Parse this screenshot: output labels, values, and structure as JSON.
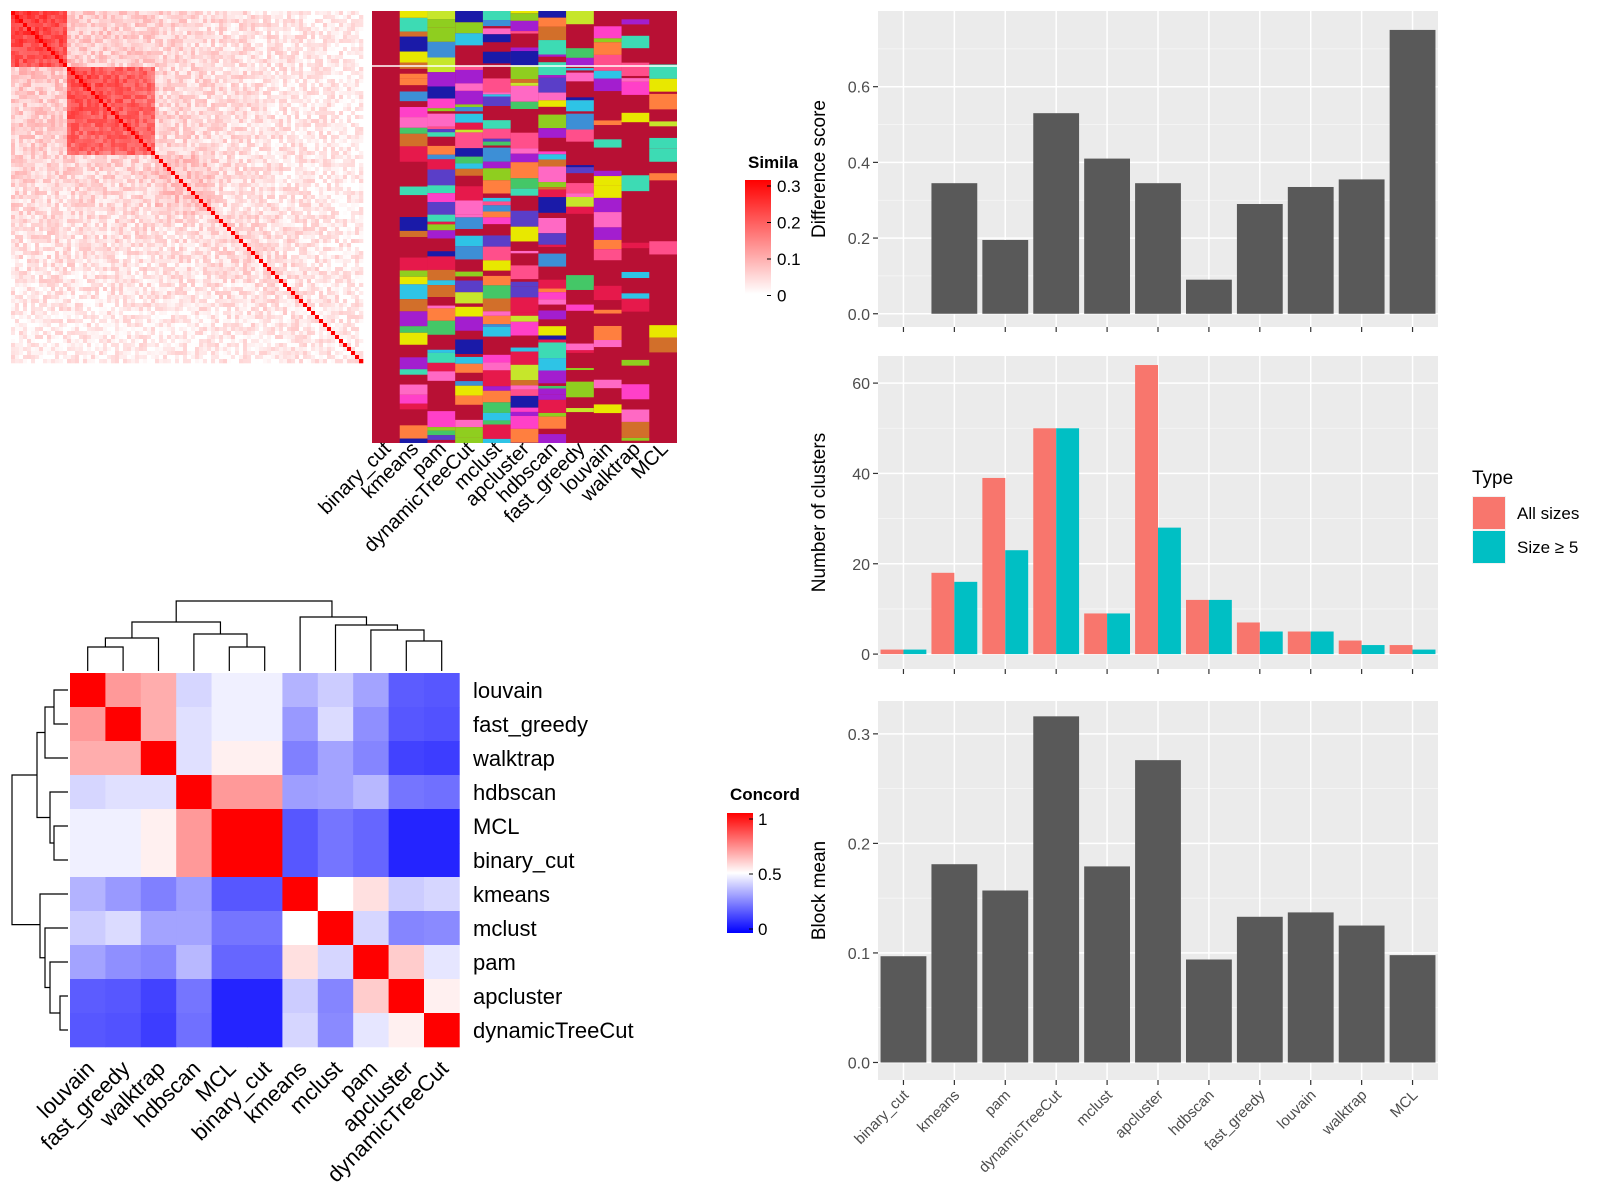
{
  "chart_data": [
    {
      "type": "heatmap",
      "title": "",
      "legend_title": "Simila",
      "legend_ticks": [
        "0.3",
        "0.2",
        "0.1",
        "0"
      ],
      "colors": {
        "low": "#ffffff",
        "high": "#ff0000"
      },
      "annotation_columns": [
        "binary_cut",
        "kmeans",
        "pam",
        "dynamicTreeCut",
        "mclust",
        "apcluster",
        "hdbscan",
        "fast_greedy",
        "louvain",
        "walktrap",
        "MCL"
      ],
      "annotation_base_color": "#b81034"
    },
    {
      "type": "heatmap",
      "title": "",
      "legend_title": "Concord",
      "legend_ticks": [
        "1",
        "0.5",
        "0"
      ],
      "colors": {
        "low": "#0000ff",
        "mid": "#ffffff",
        "high": "#ff0000"
      },
      "rows": [
        "louvain",
        "fast_greedy",
        "walktrap",
        "hdbscan",
        "MCL",
        "binary_cut",
        "kmeans",
        "mclust",
        "pam",
        "apcluster",
        "dynamicTreeCut"
      ],
      "cols": [
        "louvain",
        "fast_greedy",
        "walktrap",
        "hdbscan",
        "MCL",
        "binary_cut",
        "kmeans",
        "mclust",
        "pam",
        "apcluster",
        "dynamicTreeCut"
      ],
      "values": [
        [
          1.0,
          0.7,
          0.66,
          0.42,
          0.47,
          0.47,
          0.35,
          0.4,
          0.32,
          0.18,
          0.17
        ],
        [
          0.7,
          1.0,
          0.66,
          0.44,
          0.47,
          0.47,
          0.3,
          0.43,
          0.28,
          0.17,
          0.16
        ],
        [
          0.66,
          0.66,
          1.0,
          0.44,
          0.53,
          0.53,
          0.25,
          0.32,
          0.26,
          0.13,
          0.12
        ],
        [
          0.42,
          0.44,
          0.44,
          1.0,
          0.7,
          0.7,
          0.31,
          0.32,
          0.36,
          0.23,
          0.22
        ],
        [
          0.47,
          0.47,
          0.53,
          0.7,
          1.0,
          1.0,
          0.17,
          0.23,
          0.2,
          0.07,
          0.07
        ],
        [
          0.47,
          0.47,
          0.53,
          0.7,
          1.0,
          1.0,
          0.17,
          0.23,
          0.2,
          0.07,
          0.07
        ],
        [
          0.35,
          0.3,
          0.25,
          0.31,
          0.17,
          0.17,
          1.0,
          0.5,
          0.56,
          0.4,
          0.42
        ],
        [
          0.4,
          0.43,
          0.32,
          0.32,
          0.23,
          0.23,
          0.5,
          1.0,
          0.42,
          0.26,
          0.27
        ],
        [
          0.32,
          0.28,
          0.26,
          0.36,
          0.2,
          0.2,
          0.56,
          0.42,
          1.0,
          0.6,
          0.45
        ],
        [
          0.18,
          0.17,
          0.13,
          0.23,
          0.07,
          0.07,
          0.4,
          0.26,
          0.6,
          1.0,
          0.53
        ],
        [
          0.17,
          0.16,
          0.12,
          0.22,
          0.07,
          0.07,
          0.42,
          0.27,
          0.45,
          0.53,
          1.0
        ]
      ]
    },
    {
      "type": "bar",
      "ylabel": "Difference score",
      "categories": [
        "binary_cut",
        "kmeans",
        "pam",
        "dynamicTreeCut",
        "mclust",
        "apcluster",
        "hdbscan",
        "fast_greedy",
        "louvain",
        "walktrap",
        "MCL"
      ],
      "values": [
        0.0,
        0.345,
        0.195,
        0.53,
        0.41,
        0.345,
        0.09,
        0.29,
        0.335,
        0.355,
        0.75
      ],
      "yticks": [
        0.0,
        0.2,
        0.4,
        0.6
      ],
      "ytick_labels": [
        "0.0",
        "0.2",
        "0.4",
        "0.6"
      ],
      "ylim": [
        -0.035,
        0.8
      ],
      "color": "#595959"
    },
    {
      "type": "bar",
      "ylabel": "Number of clusters",
      "categories": [
        "binary_cut",
        "kmeans",
        "pam",
        "dynamicTreeCut",
        "mclust",
        "apcluster",
        "hdbscan",
        "fast_greedy",
        "louvain",
        "walktrap",
        "MCL"
      ],
      "series": [
        {
          "name": "All sizes",
          "color": "#f8766d",
          "values": [
            1,
            18,
            39,
            50,
            9,
            64,
            12,
            7,
            5,
            3,
            2
          ]
        },
        {
          "name": "Size ≥ 5",
          "color": "#00bfc4",
          "values": [
            1,
            16,
            23,
            50,
            9,
            28,
            12,
            5,
            5,
            2,
            1
          ]
        }
      ],
      "yticks": [
        0,
        20,
        40,
        60
      ],
      "ytick_labels": [
        "0",
        "20",
        "40",
        "60"
      ],
      "ylim": [
        -3.3,
        66
      ],
      "legend": {
        "title": "Type",
        "position": "right"
      }
    },
    {
      "type": "bar",
      "ylabel": "Block mean",
      "categories": [
        "binary_cut",
        "kmeans",
        "pam",
        "dynamicTreeCut",
        "mclust",
        "apcluster",
        "hdbscan",
        "fast_greedy",
        "louvain",
        "walktrap",
        "MCL"
      ],
      "values": [
        0.097,
        0.181,
        0.157,
        0.316,
        0.179,
        0.276,
        0.094,
        0.133,
        0.137,
        0.125,
        0.098
      ],
      "yticks": [
        0.0,
        0.1,
        0.2,
        0.3
      ],
      "ytick_labels": [
        "0.0",
        "0.1",
        "0.2",
        "0.3"
      ],
      "ylim": [
        -0.016,
        0.33
      ],
      "color": "#595959"
    }
  ]
}
